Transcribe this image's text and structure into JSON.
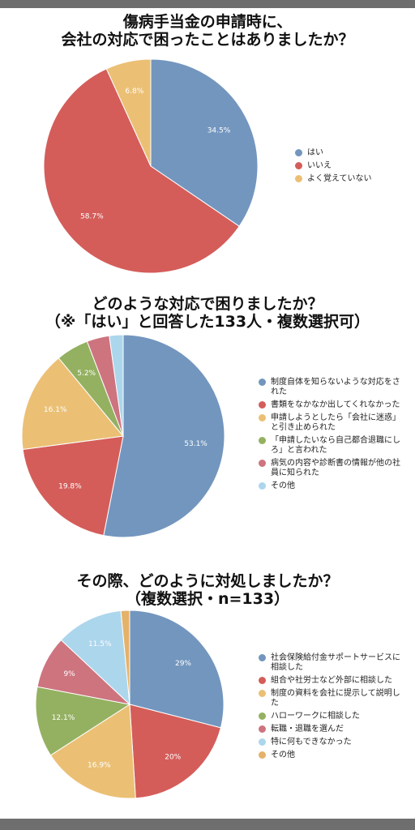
{
  "chart_data": [
    {
      "type": "pie",
      "title_lines": [
        "傷病手当金の申請時に、",
        "会社の対応で困ったことはありましたか？"
      ],
      "categories": [
        "はい",
        "いいえ",
        "よく覚えていない"
      ],
      "values": [
        34.5,
        58.7,
        6.8
      ],
      "data_labels": [
        "34.5%",
        "58.7%",
        "6.8%"
      ],
      "colors": [
        "#7396be",
        "#d45d5a",
        "#ebc075"
      ],
      "legend_position": "right"
    },
    {
      "type": "pie",
      "title_lines": [
        "どのような対応で困りましたか？",
        "（※「はい」と回答した133人・複数選択可）"
      ],
      "categories": [
        "制度自体を知らないような対応をされた",
        "書類をなかなか出してくれなかった",
        "申請しようとしたら「会社に迷惑」と引き止められた",
        "「申請したいなら自己都合退職にしろ」と言われた",
        "病気の内容や診断書の情報が他の社員に知られた",
        "その他"
      ],
      "legend_lines": [
        [
          "制度自体を知らないような対応をさ",
          "れた"
        ],
        [
          "書類をなかなか出してくれなかった"
        ],
        [
          "申請しようとしたら「会社に迷惑」",
          "と引き止められた"
        ],
        [
          "「申請したいなら自己都合退職にし",
          "ろ」と言われた"
        ],
        [
          "病気の内容や診断書の情報が他の社",
          "員に知られた"
        ],
        [
          "その他"
        ]
      ],
      "values": [
        53.1,
        19.8,
        16.1,
        5.2,
        3.6,
        2.2
      ],
      "data_labels": [
        "53.1%",
        "19.8%",
        "16.1%",
        "5.2%",
        "",
        ""
      ],
      "colors": [
        "#7396be",
        "#d45d5a",
        "#ebc075",
        "#94b161",
        "#cd747f",
        "#acd6ec"
      ],
      "legend_position": "right"
    },
    {
      "type": "pie",
      "title_lines": [
        "その際、どのように対処しましたか？",
        "（複数選択・n=133）"
      ],
      "categories": [
        "社会保険給付金サポートサービスに相談した",
        "組合や社労士など外部に相談した",
        "制度の資料を会社に提示して説明した",
        "ハローワークに相談した",
        "転職・退職を選んだ",
        "特に何もできなかった",
        "その他"
      ],
      "legend_lines": [
        [
          "社会保険給付金サポートサービスに",
          "相談した"
        ],
        [
          "組合や社労士など外部に相談した"
        ],
        [
          "制度の資料を会社に提示して説明し",
          "た"
        ],
        [
          "ハローワークに相談した"
        ],
        [
          "転職・退職を選んだ"
        ],
        [
          "特に何もできなかった"
        ],
        [
          "その他"
        ]
      ],
      "values": [
        29,
        20,
        16.9,
        12.1,
        9,
        11.5,
        1.5
      ],
      "data_labels": [
        "29%",
        "20%",
        "16.9%",
        "12.1%",
        "9%",
        "11.5%",
        ""
      ],
      "colors": [
        "#7396be",
        "#d45d5a",
        "#ebc075",
        "#94b161",
        "#cd747f",
        "#acd6ec",
        "#e5b26a"
      ],
      "legend_position": "right"
    }
  ]
}
